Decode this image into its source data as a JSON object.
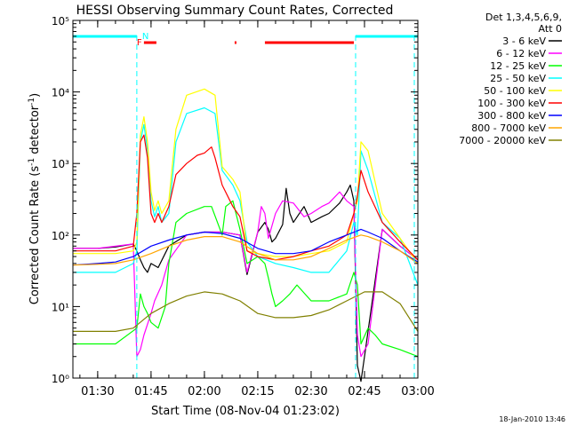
{
  "chart_data": {
    "type": "line",
    "title": "HESSI Observing Summary Count Rates, Corrected",
    "xlabel": "Start Time (08-Nov-04 01:23:02)",
    "ylabel": "Corrected Count Rate (s⁻¹ detector⁻¹)",
    "ylabel_parts": {
      "main": "Corrected Count Rate (s",
      "sup1": "-1",
      "mid": " detector",
      "sup2": "-1",
      "end": ")"
    },
    "y_scale": "log",
    "xlim": [
      "01:23:02",
      "03:00:00"
    ],
    "ylim": [
      1,
      100000
    ],
    "x_ticks": [
      "01:30",
      "01:45",
      "02:00",
      "02:15",
      "02:30",
      "02:45",
      "03:00"
    ],
    "y_ticks": [
      {
        "value": 1,
        "label": "10⁰"
      },
      {
        "value": 10,
        "label": "10¹"
      },
      {
        "value": 100,
        "label": "10²"
      },
      {
        "value": 1000,
        "label": "10³"
      },
      {
        "value": 10000,
        "label": "10⁴"
      },
      {
        "value": 100000,
        "label": "10⁵"
      }
    ],
    "legend": {
      "placement": "right",
      "header": [
        "Det 1,3,4,5,6,9,",
        "Att 0"
      ]
    },
    "flags": [
      {
        "name": "N",
        "color": "#00ffff",
        "segments": [
          [
            "01:23:02",
            "01:41:00"
          ],
          [
            "02:42:30",
            "03:00:00"
          ]
        ]
      },
      {
        "name": "F",
        "color": "#ff0000",
        "segments": [
          [
            "01:43:00",
            "01:46:30"
          ],
          [
            "02:08:30",
            "02:09:00"
          ],
          [
            "02:17:00",
            "02:42:00"
          ]
        ]
      }
    ],
    "night_markers": [
      "01:41:00",
      "02:42:30",
      "02:59:00"
    ],
    "footer_date": "18-Jan-2010 13:46",
    "series": [
      {
        "name": "3 - 6 keV",
        "color": "#000000",
        "x": [
          "01:23:02",
          "01:30",
          "01:35",
          "01:40",
          "01:41",
          "01:42",
          "01:43",
          "01:44",
          "01:45",
          "01:47",
          "01:50",
          "01:55",
          "02:00",
          "02:05",
          "02:10",
          "02:12",
          "02:15",
          "02:17",
          "02:18",
          "02:19",
          "02:20",
          "02:22",
          "02:23",
          "02:24",
          "02:25",
          "02:28",
          "02:30",
          "02:33",
          "02:35",
          "02:38",
          "02:40",
          "02:41",
          "02:42",
          "02:43",
          "02:44",
          "02:45",
          "02:50",
          "02:55",
          "03:00"
        ],
        "y": [
          65,
          65,
          68,
          75,
          60,
          45,
          35,
          30,
          40,
          35,
          70,
          100,
          110,
          110,
          100,
          28,
          110,
          150,
          120,
          80,
          90,
          140,
          450,
          200,
          150,
          250,
          150,
          180,
          200,
          280,
          400,
          500,
          300,
          1.5,
          0.9,
          2,
          120,
          70,
          45
        ]
      },
      {
        "name": "6 - 12 keV",
        "color": "#ff00ff",
        "x": [
          "01:23:02",
          "01:30",
          "01:40",
          "01:41",
          "01:42",
          "01:43",
          "01:45",
          "01:46",
          "01:48",
          "01:50",
          "01:55",
          "02:00",
          "02:05",
          "02:10",
          "02:12",
          "02:15",
          "02:16",
          "02:17",
          "02:18",
          "02:20",
          "02:22",
          "02:25",
          "02:28",
          "02:30",
          "02:33",
          "02:35",
          "02:38",
          "02:40",
          "02:42",
          "02:43",
          "02:44",
          "02:46",
          "02:50",
          "02:55",
          "03:00"
        ],
        "y": [
          65,
          65,
          75,
          2,
          2.5,
          4,
          8,
          12,
          20,
          45,
          100,
          110,
          110,
          100,
          30,
          110,
          250,
          200,
          90,
          200,
          300,
          280,
          180,
          200,
          250,
          280,
          400,
          300,
          250,
          4,
          2,
          3,
          120,
          70,
          45
        ]
      },
      {
        "name": "12 - 25 keV",
        "color": "#00ff00",
        "x": [
          "01:23:02",
          "01:35",
          "01:41",
          "01:42",
          "01:43",
          "01:44",
          "01:45",
          "01:47",
          "01:49",
          "01:50",
          "01:52",
          "01:55",
          "02:00",
          "02:02",
          "02:05",
          "02:06",
          "02:08",
          "02:10",
          "02:12",
          "02:15",
          "02:17",
          "02:18",
          "02:19",
          "02:20",
          "02:22",
          "02:24",
          "02:26",
          "02:30",
          "02:35",
          "02:40",
          "02:42",
          "02:43",
          "02:44",
          "02:46",
          "02:48",
          "02:50",
          "02:55",
          "03:00"
        ],
        "y": [
          3,
          3,
          5,
          15,
          10,
          8,
          6,
          5,
          10,
          40,
          150,
          200,
          250,
          250,
          100,
          250,
          300,
          120,
          40,
          50,
          40,
          25,
          15,
          10,
          12,
          15,
          20,
          12,
          12,
          15,
          30,
          20,
          3,
          5,
          4,
          3,
          2.5,
          2
        ]
      },
      {
        "name": "25 - 50 keV",
        "color": "#00ffff",
        "x": [
          "01:23:02",
          "01:35",
          "01:40",
          "01:41",
          "01:42",
          "01:43",
          "01:44",
          "01:45",
          "01:46",
          "01:47",
          "01:48",
          "01:50",
          "01:52",
          "01:55",
          "02:00",
          "02:03",
          "02:05",
          "02:08",
          "02:10",
          "02:12",
          "02:15",
          "02:20",
          "02:25",
          "02:30",
          "02:35",
          "02:40",
          "02:42",
          "02:43",
          "02:44",
          "02:46",
          "02:50",
          "02:55",
          "03:00"
        ],
        "y": [
          30,
          30,
          40,
          60,
          2000,
          3500,
          1500,
          300,
          180,
          250,
          150,
          200,
          2000,
          5000,
          6000,
          5000,
          800,
          500,
          300,
          80,
          50,
          40,
          35,
          30,
          30,
          60,
          150,
          100,
          1500,
          800,
          150,
          90,
          20
        ]
      },
      {
        "name": "50 - 100 keV",
        "color": "#ffff00",
        "x": [
          "01:23:02",
          "01:35",
          "01:40",
          "01:41",
          "01:42",
          "01:43",
          "01:44",
          "01:45",
          "01:46",
          "01:47",
          "01:48",
          "01:50",
          "01:52",
          "01:55",
          "02:00",
          "02:03",
          "02:05",
          "02:08",
          "02:10",
          "02:12",
          "02:15",
          "02:20",
          "02:25",
          "02:30",
          "02:35",
          "02:40",
          "02:42",
          "02:43",
          "02:44",
          "02:46",
          "02:50",
          "02:55",
          "03:00"
        ],
        "y": [
          55,
          55,
          60,
          80,
          2500,
          4500,
          2000,
          400,
          220,
          300,
          200,
          300,
          3000,
          9000,
          11000,
          9000,
          900,
          600,
          400,
          60,
          55,
          50,
          50,
          55,
          60,
          80,
          200,
          300,
          2000,
          1500,
          200,
          90,
          40
        ]
      },
      {
        "name": "100 - 300 keV",
        "color": "#ff0000",
        "x": [
          "01:23:02",
          "01:35",
          "01:40",
          "01:41",
          "01:42",
          "01:43",
          "01:44",
          "01:45",
          "01:46",
          "01:47",
          "01:48",
          "01:50",
          "01:52",
          "01:55",
          "01:58",
          "02:00",
          "02:02",
          "02:03",
          "02:05",
          "02:08",
          "02:10",
          "02:12",
          "02:15",
          "02:20",
          "02:25",
          "02:30",
          "02:35",
          "02:40",
          "02:42",
          "02:43",
          "02:44",
          "02:46",
          "02:50",
          "02:55",
          "03:00"
        ],
        "y": [
          60,
          60,
          70,
          200,
          2000,
          2500,
          1200,
          200,
          150,
          200,
          150,
          250,
          700,
          1000,
          1300,
          1400,
          1700,
          1200,
          500,
          250,
          180,
          60,
          50,
          45,
          50,
          60,
          70,
          100,
          200,
          350,
          800,
          400,
          150,
          80,
          45
        ]
      },
      {
        "name": "300 - 800 keV",
        "color": "#0000ff",
        "x": [
          "01:23:02",
          "01:30",
          "01:35",
          "01:40",
          "01:45",
          "01:50",
          "01:55",
          "02:00",
          "02:05",
          "02:10",
          "02:15",
          "02:20",
          "02:25",
          "02:30",
          "02:35",
          "02:40",
          "02:44",
          "02:46",
          "02:50",
          "02:55",
          "03:00"
        ],
        "y": [
          38,
          40,
          42,
          50,
          70,
          85,
          100,
          110,
          105,
          90,
          65,
          55,
          55,
          60,
          80,
          100,
          120,
          110,
          90,
          60,
          42
        ]
      },
      {
        "name": "800 - 7000 keV",
        "color": "#ffa500",
        "x": [
          "01:23:02",
          "01:30",
          "01:35",
          "01:40",
          "01:45",
          "01:50",
          "01:55",
          "02:00",
          "02:05",
          "02:10",
          "02:15",
          "02:20",
          "02:25",
          "02:30",
          "02:35",
          "02:40",
          "02:44",
          "02:46",
          "02:50",
          "02:55",
          "03:00"
        ],
        "y": [
          38,
          39,
          40,
          45,
          55,
          70,
          85,
          95,
          95,
          80,
          55,
          45,
          45,
          50,
          65,
          85,
          100,
          95,
          80,
          60,
          40
        ]
      },
      {
        "name": "7000 - 20000 keV",
        "color": "#808000",
        "x": [
          "01:23:02",
          "01:30",
          "01:35",
          "01:40",
          "01:45",
          "01:50",
          "01:55",
          "02:00",
          "02:05",
          "02:10",
          "02:15",
          "02:20",
          "02:25",
          "02:30",
          "02:35",
          "02:40",
          "02:45",
          "02:50",
          "02:55",
          "03:00"
        ],
        "y": [
          4.5,
          4.5,
          4.5,
          5,
          8,
          11,
          14,
          16,
          15,
          12,
          8,
          7,
          7,
          7.5,
          9,
          12,
          16,
          16,
          11,
          4.5
        ]
      }
    ]
  }
}
